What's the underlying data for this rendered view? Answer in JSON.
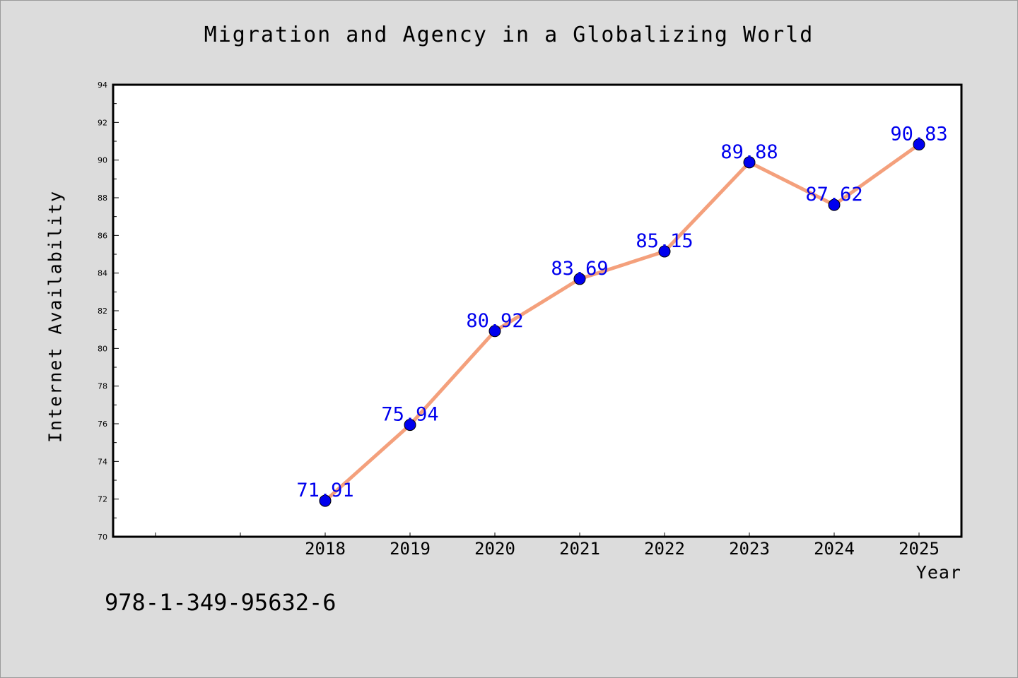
{
  "chart_data": {
    "type": "line",
    "title": "Migration and Agency in a Globalizing World",
    "xlabel": "Year",
    "ylabel": "Internet Availability",
    "categories": [
      "2018",
      "2019",
      "2020",
      "2021",
      "2022",
      "2023",
      "2024",
      "2025"
    ],
    "values": [
      71.91,
      75.94,
      80.92,
      83.69,
      85.15,
      89.88,
      87.62,
      90.83
    ],
    "data_labels": [
      "71.91",
      "75.94",
      "80.92",
      "83.69",
      "85.15",
      "89.88",
      "87.62",
      "90.83"
    ],
    "ylim": [
      70,
      94
    ],
    "yticks": [
      "70",
      "72",
      "74",
      "76",
      "78",
      "80",
      "82",
      "84",
      "86",
      "88",
      "90",
      "92",
      "94"
    ],
    "x_slots": 10,
    "x_slot_offset": 2,
    "grid": false,
    "line_color": "#f4a07c",
    "marker_color": "#0000ee",
    "label_color": "#0000ee"
  },
  "footer_code": "978-1-349-95632-6"
}
